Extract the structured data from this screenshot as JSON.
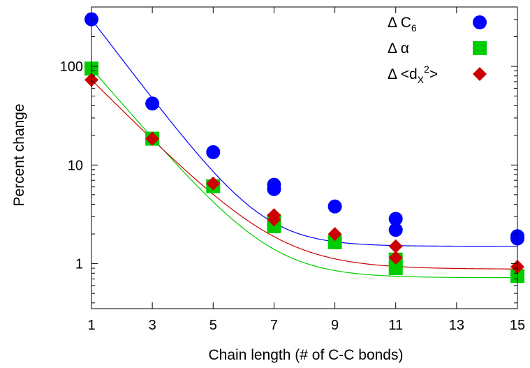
{
  "chart_data": {
    "type": "scatter",
    "xlabel": "Chain length (# of C-C bonds)",
    "ylabel": "Percent change",
    "xlim": [
      1,
      15
    ],
    "ylim": [
      0.35,
      400
    ],
    "yscale": "log",
    "xticks": [
      "1",
      "3",
      "5",
      "7",
      "9",
      "11",
      "13",
      "15"
    ],
    "yticks": [
      "1",
      "10",
      "100"
    ],
    "grid": false,
    "legend_position": "top-right",
    "series": [
      {
        "name": "Δ C6",
        "legend_base": "Δ C",
        "legend_sub": "6",
        "marker": "circle",
        "color": "#0000ff",
        "x": [
          1,
          3,
          5,
          7,
          7,
          9,
          11,
          11,
          15,
          15
        ],
        "y": [
          300,
          42,
          13.5,
          6.3,
          5.7,
          3.8,
          2.85,
          2.2,
          1.9,
          1.8
        ],
        "fit": {
          "a": 1.5,
          "b": 0.935
        }
      },
      {
        "name": "Δ α",
        "legend_base": "Δ α",
        "marker": "square",
        "color": "#00cc00",
        "x": [
          1,
          3,
          5,
          7,
          7,
          9,
          11,
          11,
          15
        ],
        "y": [
          95,
          18.5,
          6.1,
          2.7,
          2.4,
          1.65,
          1.1,
          0.9,
          0.75
        ],
        "fit": {
          "a": 0.72,
          "b": 0.822
        }
      },
      {
        "name": "Δ <dX2>",
        "legend_base": "Δ <d",
        "legend_sub": "X",
        "legend_sup": "2",
        "legend_tail": ">",
        "marker": "diamond",
        "color": "#cc0000",
        "x": [
          1,
          3,
          5,
          7,
          7,
          9,
          11,
          11,
          15
        ],
        "y": [
          73,
          18.5,
          6.5,
          3.1,
          2.8,
          2.0,
          1.5,
          1.15,
          0.93
        ],
        "fit": {
          "a": 0.88,
          "b": 0.713
        }
      }
    ]
  }
}
